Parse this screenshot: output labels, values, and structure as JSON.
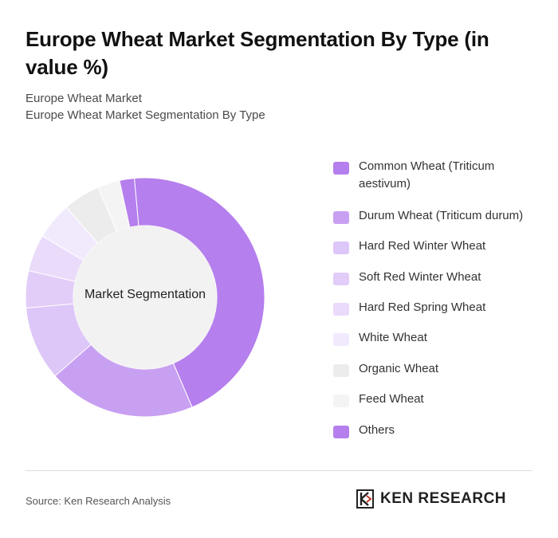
{
  "header": {
    "title": "Europe Wheat Market Segmentation By Type (in value %)",
    "subtitle_line1": "Europe Wheat Market",
    "subtitle_line2": "Europe Wheat Market Segmentation By Type"
  },
  "chart_data": {
    "type": "pie",
    "center_label": "Market Segmentation",
    "legend_position": "right",
    "categories": [
      "Common Wheat (Triticum aestivum)",
      "Durum Wheat (Triticum durum)",
      "Hard Red Winter Wheat",
      "Soft Red Winter Wheat",
      "Hard Red Spring Wheat",
      "White Wheat",
      "Organic Wheat",
      "Feed Wheat",
      "Others"
    ],
    "values": [
      45,
      20,
      10,
      5,
      5,
      5,
      5,
      3,
      2
    ],
    "colors": [
      "#b57fed",
      "#c8a0f2",
      "#ddc6f8",
      "#e2cdf8",
      "#eadbfb",
      "#f1eafd",
      "#ececec",
      "#f4f4f4",
      "#b57fed"
    ]
  },
  "footer": {
    "source": "Source: Ken Research Analysis",
    "brand": "KEN RESEARCH"
  }
}
